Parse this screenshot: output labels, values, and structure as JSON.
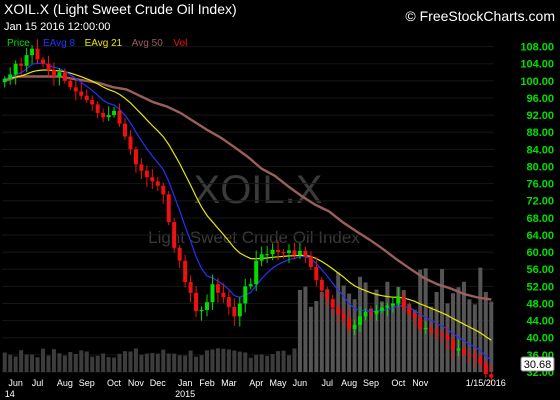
{
  "header": {
    "symbol": "XOIL.X (Light Sweet Crude Oil Index)",
    "datetime": "Jan 15 2016 12:00:00",
    "brand": "© FreeStockCharts.com"
  },
  "watermark": {
    "symbol": "XOIL.X",
    "name": "Light Sweet Crude Oil Index"
  },
  "colors": {
    "background": "#000000",
    "up": "#00dd00",
    "down": "#ee1111",
    "eavg8": "#2233ff",
    "eavg21": "#e8e800",
    "avg50": "#9b5f5a",
    "ticks": "#00e000",
    "volume": "#555555"
  },
  "chart_data": {
    "type": "candlestick",
    "legend": [
      {
        "name": "Price",
        "color": "#00dd00"
      },
      {
        "name": "EAvg 8",
        "color": "#2233ff"
      },
      {
        "name": "EAvg 21",
        "color": "#e8e800"
      },
      {
        "name": "Avg 50",
        "color": "#9b5f5a"
      },
      {
        "name": "Vol",
        "color": "#ee1111"
      }
    ],
    "ylim": [
      32,
      110
    ],
    "y_ticks": [
      "108.00",
      "104.00",
      "100.00",
      "96.00",
      "92.00",
      "88.00",
      "84.00",
      "80.00",
      "76.00",
      "72.00",
      "68.00",
      "64.00",
      "60.00",
      "56.00",
      "52.00",
      "48.00",
      "44.00",
      "40.00",
      "36.00",
      "32.00"
    ],
    "last_price": "30.68",
    "x_ticks": [
      {
        "label": "Jun",
        "week": 2
      },
      {
        "label": "Jul",
        "week": 6
      },
      {
        "label": "Aug",
        "week": 11
      },
      {
        "label": "Sep",
        "week": 15
      },
      {
        "label": "Oct",
        "week": 20
      },
      {
        "label": "Nov",
        "week": 24
      },
      {
        "label": "Dec",
        "week": 28
      },
      {
        "label": "Jan",
        "week": 33
      },
      {
        "label": "Feb",
        "week": 37
      },
      {
        "label": "Mar",
        "week": 41
      },
      {
        "label": "Apr",
        "week": 46
      },
      {
        "label": "May",
        "week": 50
      },
      {
        "label": "Jun",
        "week": 54
      },
      {
        "label": "Jul",
        "week": 59
      },
      {
        "label": "Aug",
        "week": 63
      },
      {
        "label": "Sep",
        "week": 67
      },
      {
        "label": "Oct",
        "week": 72
      },
      {
        "label": "Nov",
        "week": 76
      },
      {
        "label": "1/15/2016",
        "week": 88
      }
    ],
    "year_labels": [
      {
        "label": "14",
        "week": 0
      },
      {
        "label": "2015",
        "week": 33
      }
    ],
    "weeks_total": 90,
    "closes": [
      100.5,
      101.5,
      104,
      103.5,
      106,
      107.5,
      105,
      104,
      102.5,
      101,
      102,
      100,
      98.5,
      97.5,
      96.5,
      95.5,
      94.5,
      92.5,
      91.5,
      92,
      93,
      90,
      87,
      84,
      80.5,
      79,
      77.5,
      76.5,
      75.5,
      73.5,
      67,
      61,
      58,
      53,
      50.5,
      46.2,
      46.5,
      48.3,
      52.5,
      50.5,
      49.5,
      47.2,
      45,
      48,
      52,
      52.5,
      58,
      59.5,
      59.5,
      60.5,
      60,
      59.8,
      60.4,
      59.3,
      60.3,
      59,
      56.5,
      53.5,
      51,
      49,
      47,
      45.5,
      44.5,
      42,
      43,
      45,
      46,
      45.5,
      46.3,
      47,
      47.5,
      48,
      49.5,
      47,
      45.5,
      44.5,
      42,
      42.3,
      41.5,
      41,
      40.5,
      39.5,
      37,
      37.5,
      36.2,
      36,
      35.5,
      34,
      31.5,
      30.7
    ],
    "avg50_line": [
      100,
      101,
      101,
      101,
      101,
      100.5,
      100,
      99.5,
      98.5,
      98,
      96.5,
      95,
      94,
      92.5,
      90.5,
      88.5,
      86.7,
      84.5,
      82.2,
      79.5,
      77.8,
      75.3,
      73,
      71,
      69.5,
      67,
      64.9,
      62.9,
      60.7,
      58.3,
      56.1,
      54,
      52.5,
      51.5,
      50.2,
      49.4,
      48.9
    ],
    "avg50_start_week": 54,
    "volume_start_week": 54
  }
}
